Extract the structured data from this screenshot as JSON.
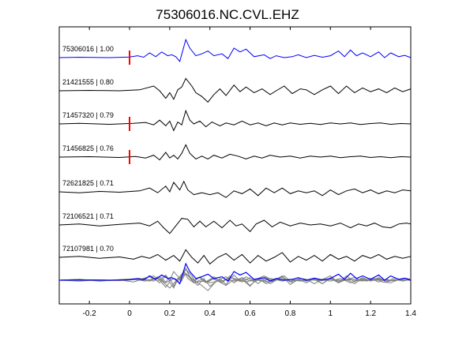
{
  "chart_data": {
    "type": "line",
    "title": "75306016.NC.CVL.EHZ",
    "xlabel": "",
    "ylabel": "",
    "xlim": [
      -0.35,
      1.4
    ],
    "x_ticks": [
      -0.2,
      0,
      0.2,
      0.4,
      0.6,
      0.8,
      1,
      1.2,
      1.4
    ],
    "x_tick_labels": [
      "-0.2",
      "0",
      "0.2",
      "0.4",
      "0.6",
      "0.8",
      "1",
      "1.2",
      "1.4"
    ],
    "grid": false,
    "pick_time": 0,
    "colors": {
      "master": "#0000ff",
      "trace": "#000000",
      "stack": "#808080",
      "pick": "#ff0000"
    },
    "series": [
      {
        "name": "75306016 | 1.00",
        "color": "#0000ff",
        "pick": true,
        "points": [
          [
            -0.35,
            0
          ],
          [
            -0.25,
            0.02
          ],
          [
            -0.1,
            0
          ],
          [
            0,
            0.03
          ],
          [
            0.04,
            0.1
          ],
          [
            0.07,
            0.02
          ],
          [
            0.1,
            0.25
          ],
          [
            0.13,
            0.05
          ],
          [
            0.16,
            0.3
          ],
          [
            0.19,
            0.1
          ],
          [
            0.21,
            0.15
          ],
          [
            0.23,
            0.05
          ],
          [
            0.25,
            -0.2
          ],
          [
            0.28,
            0.95
          ],
          [
            0.3,
            0.5
          ],
          [
            0.33,
            0.1
          ],
          [
            0.36,
            0.2
          ],
          [
            0.39,
            0.35
          ],
          [
            0.42,
            0.1
          ],
          [
            0.46,
            0.2
          ],
          [
            0.49,
            -0.05
          ],
          [
            0.52,
            0.5
          ],
          [
            0.55,
            0.3
          ],
          [
            0.58,
            0.45
          ],
          [
            0.62,
            0.05
          ],
          [
            0.67,
            0.15
          ],
          [
            0.7,
            -0.05
          ],
          [
            0.73,
            0.1
          ],
          [
            0.77,
            0
          ],
          [
            0.81,
            0.05
          ],
          [
            0.84,
            0.15
          ],
          [
            0.88,
            0
          ],
          [
            0.92,
            0.12
          ],
          [
            0.96,
            0.02
          ],
          [
            1.0,
            0.1
          ],
          [
            1.04,
            0.35
          ],
          [
            1.07,
            0.05
          ],
          [
            1.1,
            0.4
          ],
          [
            1.13,
            0.1
          ],
          [
            1.16,
            0.25
          ],
          [
            1.2,
            0.05
          ],
          [
            1.24,
            0.3
          ],
          [
            1.27,
            0
          ],
          [
            1.3,
            0.25
          ],
          [
            1.34,
            0.05
          ],
          [
            1.37,
            0.12
          ],
          [
            1.4,
            0
          ]
        ]
      },
      {
        "name": "21421555 | 0.80",
        "color": "#000000",
        "pick": false,
        "points": [
          [
            -0.35,
            0
          ],
          [
            -0.2,
            0.02
          ],
          [
            -0.05,
            0
          ],
          [
            0.05,
            0.05
          ],
          [
            0.12,
            0.25
          ],
          [
            0.15,
            0
          ],
          [
            0.18,
            -0.4
          ],
          [
            0.2,
            -0.1
          ],
          [
            0.22,
            -0.45
          ],
          [
            0.24,
            0.05
          ],
          [
            0.26,
            0.2
          ],
          [
            0.28,
            0.65
          ],
          [
            0.31,
            0.25
          ],
          [
            0.33,
            -0.1
          ],
          [
            0.36,
            -0.3
          ],
          [
            0.39,
            -0.6
          ],
          [
            0.42,
            -0.2
          ],
          [
            0.45,
            0.1
          ],
          [
            0.48,
            -0.25
          ],
          [
            0.52,
            0.3
          ],
          [
            0.55,
            -0.05
          ],
          [
            0.58,
            0.2
          ],
          [
            0.62,
            -0.1
          ],
          [
            0.66,
            0.1
          ],
          [
            0.7,
            -0.2
          ],
          [
            0.73,
            0
          ],
          [
            0.77,
            0.25
          ],
          [
            0.81,
            -0.15
          ],
          [
            0.85,
            0.1
          ],
          [
            0.88,
            0.05
          ],
          [
            0.92,
            -0.2
          ],
          [
            0.96,
            0.05
          ],
          [
            1.0,
            0.25
          ],
          [
            1.04,
            -0.15
          ],
          [
            1.08,
            0.25
          ],
          [
            1.12,
            -0.1
          ],
          [
            1.16,
            0.15
          ],
          [
            1.2,
            -0.05
          ],
          [
            1.24,
            0.1
          ],
          [
            1.28,
            -0.1
          ],
          [
            1.32,
            0.15
          ],
          [
            1.36,
            -0.05
          ],
          [
            1.4,
            0.1
          ]
        ]
      },
      {
        "name": "71457320 | 0.79",
        "color": "#000000",
        "pick": true,
        "points": [
          [
            -0.35,
            0
          ],
          [
            -0.25,
            0.03
          ],
          [
            -0.1,
            -0.02
          ],
          [
            0.02,
            0.03
          ],
          [
            0.08,
            0.08
          ],
          [
            0.12,
            -0.05
          ],
          [
            0.15,
            0.2
          ],
          [
            0.18,
            -0.1
          ],
          [
            0.2,
            0.15
          ],
          [
            0.22,
            -0.35
          ],
          [
            0.24,
            0.1
          ],
          [
            0.26,
            -0.05
          ],
          [
            0.28,
            0.7
          ],
          [
            0.3,
            0.2
          ],
          [
            0.32,
            0
          ],
          [
            0.35,
            0.15
          ],
          [
            0.38,
            -0.15
          ],
          [
            0.41,
            0.1
          ],
          [
            0.45,
            -0.1
          ],
          [
            0.48,
            0.05
          ],
          [
            0.52,
            -0.05
          ],
          [
            0.56,
            0.15
          ],
          [
            0.6,
            -0.05
          ],
          [
            0.64,
            0.05
          ],
          [
            0.68,
            -0.1
          ],
          [
            0.72,
            0.05
          ],
          [
            0.76,
            -0.05
          ],
          [
            0.8,
            0.05
          ],
          [
            0.85,
            -0.02
          ],
          [
            0.9,
            0.03
          ],
          [
            0.95,
            -0.03
          ],
          [
            1.0,
            0.05
          ],
          [
            1.05,
            0
          ],
          [
            1.1,
            0.05
          ],
          [
            1.15,
            -0.03
          ],
          [
            1.2,
            0.02
          ],
          [
            1.25,
            0.05
          ],
          [
            1.3,
            -0.02
          ],
          [
            1.35,
            0.02
          ],
          [
            1.4,
            0
          ]
        ]
      },
      {
        "name": "71456825 | 0.76",
        "color": "#000000",
        "pick": true,
        "points": [
          [
            -0.35,
            0
          ],
          [
            -0.2,
            0.02
          ],
          [
            -0.05,
            -0.02
          ],
          [
            0.03,
            0.03
          ],
          [
            0.08,
            -0.05
          ],
          [
            0.12,
            0.1
          ],
          [
            0.15,
            -0.15
          ],
          [
            0.18,
            0.25
          ],
          [
            0.2,
            -0.05
          ],
          [
            0.22,
            0.1
          ],
          [
            0.24,
            -0.1
          ],
          [
            0.26,
            0.2
          ],
          [
            0.28,
            0.65
          ],
          [
            0.3,
            0.2
          ],
          [
            0.33,
            -0.1
          ],
          [
            0.36,
            0.05
          ],
          [
            0.39,
            -0.1
          ],
          [
            0.42,
            0.1
          ],
          [
            0.46,
            -0.05
          ],
          [
            0.5,
            0.15
          ],
          [
            0.54,
            0.05
          ],
          [
            0.58,
            -0.1
          ],
          [
            0.62,
            0.05
          ],
          [
            0.66,
            -0.05
          ],
          [
            0.7,
            0.1
          ],
          [
            0.75,
            0
          ],
          [
            0.8,
            0.05
          ],
          [
            0.85,
            -0.05
          ],
          [
            0.9,
            0.05
          ],
          [
            0.95,
            0
          ],
          [
            1.0,
            0.05
          ],
          [
            1.05,
            -0.03
          ],
          [
            1.1,
            0.02
          ],
          [
            1.15,
            0.05
          ],
          [
            1.2,
            -0.02
          ],
          [
            1.25,
            0.02
          ],
          [
            1.3,
            -0.03
          ],
          [
            1.35,
            0.02
          ],
          [
            1.4,
            0
          ]
        ]
      },
      {
        "name": "72621825 | 0.71",
        "color": "#000000",
        "pick": false,
        "points": [
          [
            -0.35,
            0
          ],
          [
            -0.25,
            -0.05
          ],
          [
            -0.15,
            0.02
          ],
          [
            -0.05,
            -0.02
          ],
          [
            0.05,
            0.05
          ],
          [
            0.1,
            0.2
          ],
          [
            0.14,
            -0.05
          ],
          [
            0.18,
            0.3
          ],
          [
            0.2,
            0
          ],
          [
            0.22,
            0.5
          ],
          [
            0.25,
            0.1
          ],
          [
            0.27,
            0.55
          ],
          [
            0.29,
            0.1
          ],
          [
            0.32,
            -0.15
          ],
          [
            0.36,
            -0.05
          ],
          [
            0.4,
            -0.15
          ],
          [
            0.44,
            -0.05
          ],
          [
            0.48,
            -0.3
          ],
          [
            0.52,
            0.05
          ],
          [
            0.56,
            -0.1
          ],
          [
            0.6,
            0.15
          ],
          [
            0.64,
            -0.2
          ],
          [
            0.68,
            0.2
          ],
          [
            0.72,
            -0.05
          ],
          [
            0.76,
            0.2
          ],
          [
            0.8,
            -0.1
          ],
          [
            0.84,
            0.05
          ],
          [
            0.88,
            -0.05
          ],
          [
            0.92,
            0.05
          ],
          [
            0.96,
            -0.2
          ],
          [
            1.0,
            0.1
          ],
          [
            1.04,
            -0.15
          ],
          [
            1.08,
            0.05
          ],
          [
            1.12,
            0.15
          ],
          [
            1.16,
            -0.05
          ],
          [
            1.2,
            0.1
          ],
          [
            1.24,
            -0.1
          ],
          [
            1.28,
            0.05
          ],
          [
            1.32,
            -0.05
          ],
          [
            1.36,
            0.1
          ],
          [
            1.4,
            0.05
          ]
        ]
      },
      {
        "name": "72106521 | 0.71",
        "color": "#000000",
        "pick": false,
        "points": [
          [
            -0.35,
            0
          ],
          [
            -0.25,
            0.05
          ],
          [
            -0.15,
            -0.05
          ],
          [
            -0.05,
            0.03
          ],
          [
            0.05,
            0.1
          ],
          [
            0.1,
            -0.05
          ],
          [
            0.14,
            0.2
          ],
          [
            0.17,
            -0.15
          ],
          [
            0.2,
            -0.45
          ],
          [
            0.23,
            -0.05
          ],
          [
            0.26,
            0.35
          ],
          [
            0.29,
            0.3
          ],
          [
            0.32,
            -0.1
          ],
          [
            0.35,
            0.2
          ],
          [
            0.38,
            -0.1
          ],
          [
            0.42,
            0.2
          ],
          [
            0.46,
            -0.15
          ],
          [
            0.5,
            0.25
          ],
          [
            0.53,
            -0.05
          ],
          [
            0.56,
            0.05
          ],
          [
            0.6,
            -0.35
          ],
          [
            0.63,
            0.05
          ],
          [
            0.67,
            0.25
          ],
          [
            0.71,
            -0.1
          ],
          [
            0.75,
            0.15
          ],
          [
            0.8,
            -0.05
          ],
          [
            0.85,
            0.1
          ],
          [
            0.9,
            0
          ],
          [
            0.95,
            0.05
          ],
          [
            1.0,
            -0.05
          ],
          [
            1.05,
            0.1
          ],
          [
            1.1,
            -0.15
          ],
          [
            1.14,
            0.05
          ],
          [
            1.18,
            -0.05
          ],
          [
            1.22,
            0.1
          ],
          [
            1.26,
            -0.1
          ],
          [
            1.3,
            -0.15
          ],
          [
            1.34,
            0.05
          ],
          [
            1.38,
            0.1
          ],
          [
            1.4,
            0.05
          ]
        ]
      },
      {
        "name": "72107981 | 0.70",
        "color": "#000000",
        "pick": false,
        "points": [
          [
            -0.35,
            0
          ],
          [
            -0.25,
            0.05
          ],
          [
            -0.15,
            -0.05
          ],
          [
            -0.05,
            0.02
          ],
          [
            0.02,
            -0.1
          ],
          [
            0.06,
            0.05
          ],
          [
            0.1,
            -0.05
          ],
          [
            0.14,
            0.15
          ],
          [
            0.18,
            -0.15
          ],
          [
            0.22,
            0.1
          ],
          [
            0.25,
            -0.2
          ],
          [
            0.28,
            0.4
          ],
          [
            0.31,
            0
          ],
          [
            0.34,
            -0.3
          ],
          [
            0.37,
            0.1
          ],
          [
            0.4,
            -0.35
          ],
          [
            0.44,
            0
          ],
          [
            0.48,
            0.2
          ],
          [
            0.52,
            -0.15
          ],
          [
            0.56,
            0.15
          ],
          [
            0.6,
            -0.3
          ],
          [
            0.64,
            0.1
          ],
          [
            0.68,
            -0.2
          ],
          [
            0.72,
            0
          ],
          [
            0.76,
            0.25
          ],
          [
            0.8,
            -0.25
          ],
          [
            0.84,
            0.05
          ],
          [
            0.88,
            -0.15
          ],
          [
            0.92,
            0.1
          ],
          [
            0.96,
            -0.2
          ],
          [
            1.0,
            0.15
          ],
          [
            1.04,
            -0.1
          ],
          [
            1.08,
            0.05
          ],
          [
            1.12,
            -0.2
          ],
          [
            1.16,
            0.1
          ],
          [
            1.2,
            -0.05
          ],
          [
            1.24,
            0.15
          ],
          [
            1.28,
            -0.1
          ],
          [
            1.32,
            0.05
          ],
          [
            1.36,
            -0.05
          ],
          [
            1.4,
            0.05
          ]
        ]
      }
    ],
    "stack_label": "overlay of all traces"
  }
}
